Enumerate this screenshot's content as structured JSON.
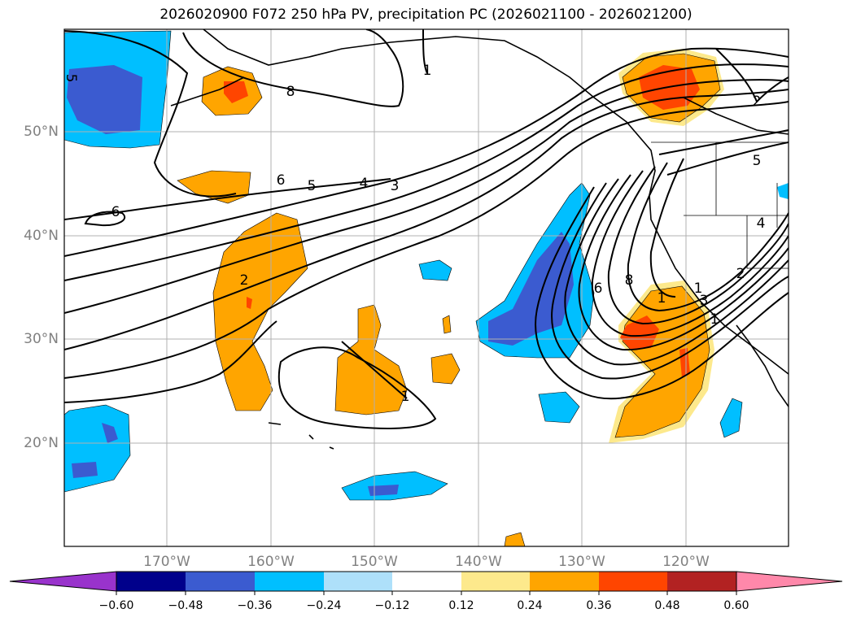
{
  "title": "2026020900 F072 250 hPa PV, precipitation PC (2026021100 - 2026021200)",
  "lat_labels": [
    "50°N",
    "40°N",
    "30°N",
    "20°N"
  ],
  "lon_labels": [
    "170°W",
    "160°W",
    "150°W",
    "140°W",
    "130°W",
    "120°W"
  ],
  "contour_labels": [
    "5",
    "8",
    "1",
    "2",
    "6",
    "5",
    "4",
    "3",
    "6",
    "2",
    "1",
    "6",
    "8",
    "1",
    "3",
    "1",
    "1",
    "5",
    "4",
    "2"
  ],
  "colorbar": {
    "ticks": [
      "−0.60",
      "−0.48",
      "−0.36",
      "−0.24",
      "−0.12",
      "0.12",
      "0.24",
      "0.36",
      "0.48",
      "0.60"
    ],
    "colors": [
      "#9933cc",
      "#00008b",
      "#3b5bd0",
      "#00bfff",
      "#aee0fa",
      "#ffffff",
      "#fde98c",
      "#ffa500",
      "#ff4500",
      "#b22222",
      "#ff88aa"
    ]
  },
  "fill_colors": {
    "neg_light": "#aee0fa",
    "neg_mid": "#00bfff",
    "neg_dark": "#3b5bd0",
    "pos_light": "#fde98c",
    "pos_mid": "#ffa500",
    "pos_dark": "#ff4500"
  }
}
